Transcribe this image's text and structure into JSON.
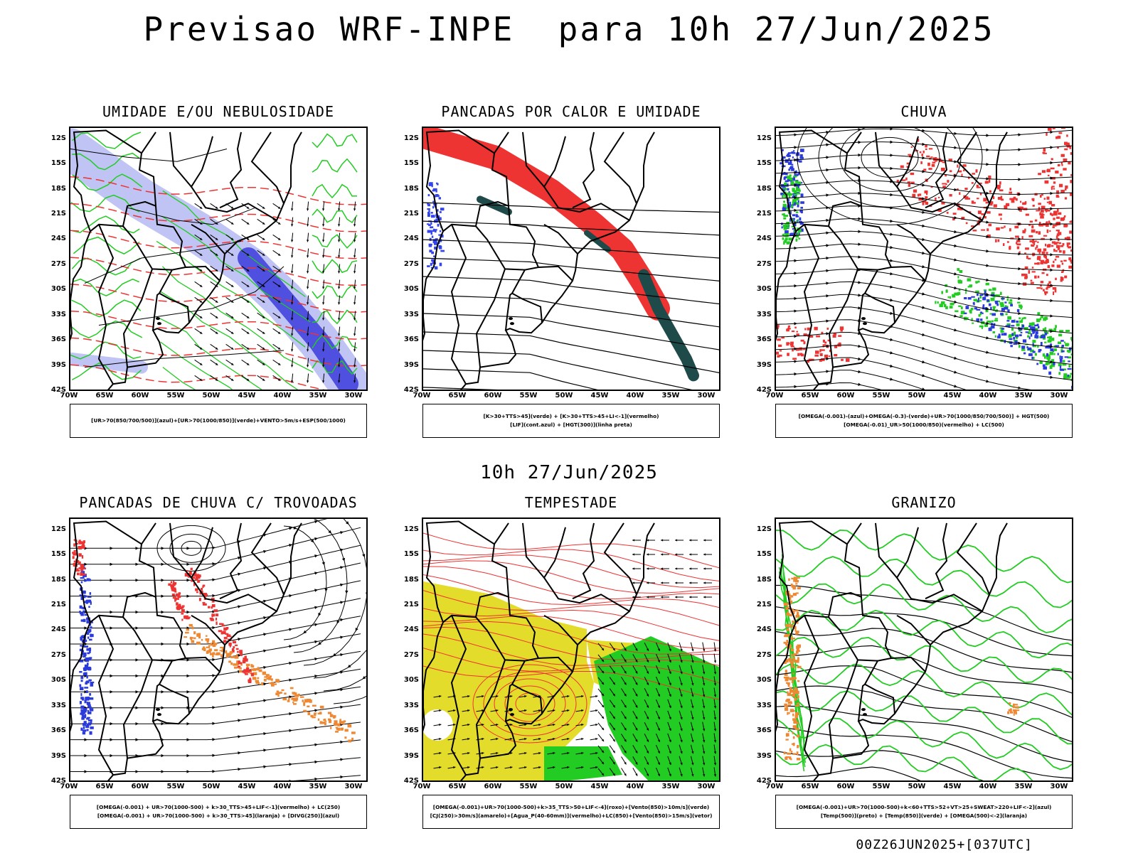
{
  "title": "Previsao WRF-INPE  para 10h 27/Jun/2025",
  "subtitle": "10h 27/Jun/2025",
  "footer": "00Z26JUN2025+[037UTC]",
  "axes": {
    "lat_labels": [
      "12S",
      "15S",
      "18S",
      "21S",
      "24S",
      "27S",
      "30S",
      "33S",
      "36S",
      "39S",
      "42S"
    ],
    "lon_labels": [
      "70W",
      "65W",
      "60W",
      "55W",
      "50W",
      "45W",
      "40W",
      "35W",
      "30W"
    ]
  },
  "colors": {
    "moisture_blue": "#aab0f0",
    "deep_blue": "#3b3bdc",
    "green": "#22cc22",
    "red": "#ee3333",
    "orange": "#ee8833",
    "yellow": "#e3dc2a",
    "dark_teal": "#1f4a4a",
    "contour_black": "#000000"
  },
  "panels": [
    {
      "title": "UMIDADE E/OU NEBULOSIDADE",
      "legend": [
        "[UR>70(850/700/500)](azul)+[UR>70(1000/850)](verde)+VENTO>5m/s+ESP(500/1000)"
      ],
      "contour_labels": [
        "1016",
        "1016",
        "1020",
        "1020",
        "1020",
        "1020",
        "1024",
        "1024",
        "1016",
        "1012",
        "1012",
        "1008",
        "570",
        "564",
        "558",
        "552",
        "546",
        "540",
        "534",
        "528",
        "522"
      ]
    },
    {
      "title": "PANCADAS POR CALOR E UMIDADE",
      "legend": [
        "[K>30+TTS>45](verde) + [K>30+TTS>45+LI<-1](vermelho)",
        "[LIF](cont.azul) + [HGT(300)](linha preta)"
      ],
      "contour_labels": [
        "9600",
        "9600",
        "9440",
        "9520",
        "9360",
        "9280",
        "9600",
        "9440",
        "9520",
        "9360",
        "9280",
        "9200",
        "9120",
        "9040",
        "8960",
        "8960",
        "8880",
        "120"
      ]
    },
    {
      "title": "CHUVA",
      "legend": [
        "[OMEGA(-0.001)-(azul)+OMEGA(-0.3)-(verde)+UR>70(1000/850/700/500)] + HGT(500)",
        "[OMEGA(-0.01)_UR>50(1000/850)(vermelho) + LC(500)"
      ],
      "contour_labels": [
        "582",
        "576",
        "573",
        "570",
        "567",
        "564",
        "561",
        "558",
        "555",
        "552",
        "549",
        "546",
        "543",
        "540",
        "537"
      ]
    },
    {
      "title": "PANCADAS DE CHUVA C/ TROVOADAS",
      "legend": [
        "[OMEGA(-0.001) + UR>70(1000-500) + k>30_TTS>45+LIF<-1](vermelho) + LC(250)",
        "[OMEGA(-0.001) + UR>70(1000-500) + k>30_TTS>45](laranja) + [DIVG(250)](azul)"
      ],
      "contour_labels": []
    },
    {
      "title": "TEMPESTADE",
      "legend": [
        "[OMEGA(-0.001)+UR>70(1000-500)+k>35_TTS>50+LIF<-4](roxo)+[Vento(850)>10m/s](verde)",
        "[CJ(250)>30m/s](amarelo)+[Agua_P(40-60mm)](vermelho)+LC(850)+[Vento(850)>15m/s](vetor)"
      ],
      "contour_labels": []
    },
    {
      "title": "GRANIZO",
      "legend": [
        "[OMEGA(-0.001)+UR>70(1000-500)+k<60+TTS>52+VT>25+SWEAT>220+LIF<-2](azul)",
        "[Temp(500)](preto) + [Temp(850)](verde) + [OMEGA(500)<-2](laranja)"
      ],
      "contour_labels": [
        "-9",
        "-12",
        "-12",
        "-15",
        "-18",
        "-21",
        "-24",
        "-27",
        "-30",
        "-12",
        "9",
        "12",
        "15",
        "18",
        "21"
      ]
    }
  ]
}
